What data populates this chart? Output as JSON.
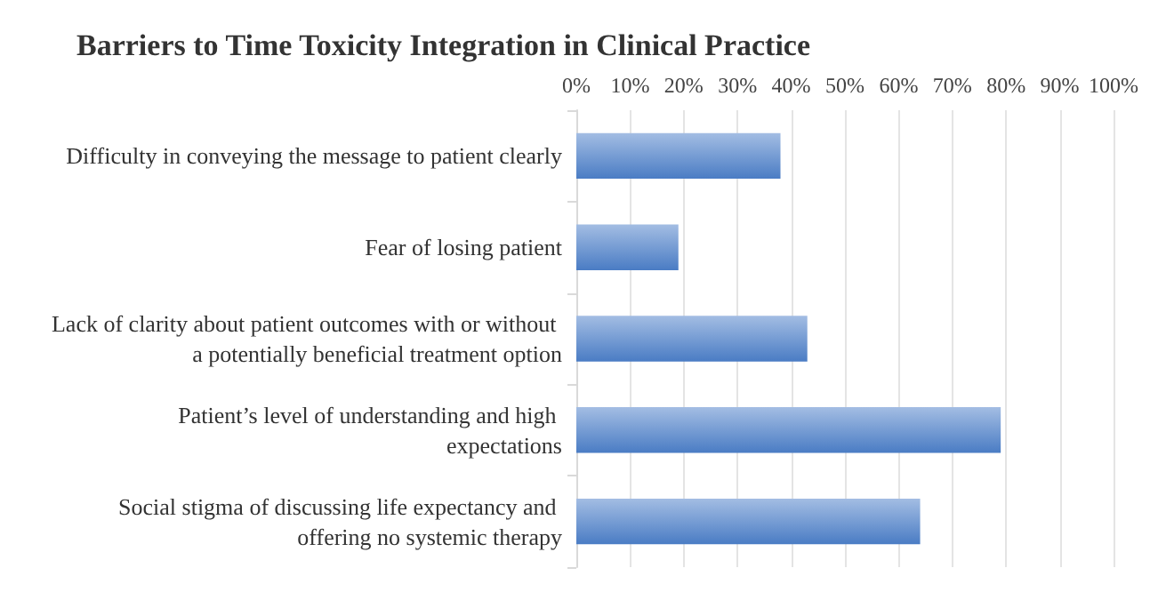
{
  "chart_data": {
    "type": "bar",
    "orientation": "horizontal",
    "title": "Barriers to Time Toxicity Integration in Clinical Practice",
    "categories": [
      "Difficulty in conveying the message to patient clearly",
      "Fear of losing patient",
      "Lack of clarity about patient outcomes with or without a potentially beneficial treatment option",
      "Patient’s level of understanding and high expectations",
      "Social stigma of discussing life expectancy and offering no systemic therapy"
    ],
    "values": [
      38,
      19,
      43,
      79,
      64
    ],
    "color": "#4a7cc4",
    "xlim": [
      0,
      100
    ],
    "xticks": [
      {
        "value": 0,
        "label": "0%"
      },
      {
        "value": 10,
        "label": "10%"
      },
      {
        "value": 20,
        "label": "20%"
      },
      {
        "value": 30,
        "label": "30%"
      },
      {
        "value": 40,
        "label": "40%"
      },
      {
        "value": 50,
        "label": "50%"
      },
      {
        "value": 60,
        "label": "60%"
      },
      {
        "value": 70,
        "label": "70%"
      },
      {
        "value": 80,
        "label": "80%"
      },
      {
        "value": 90,
        "label": "90%"
      },
      {
        "value": 100,
        "label": "100%"
      }
    ],
    "grid": "x"
  }
}
